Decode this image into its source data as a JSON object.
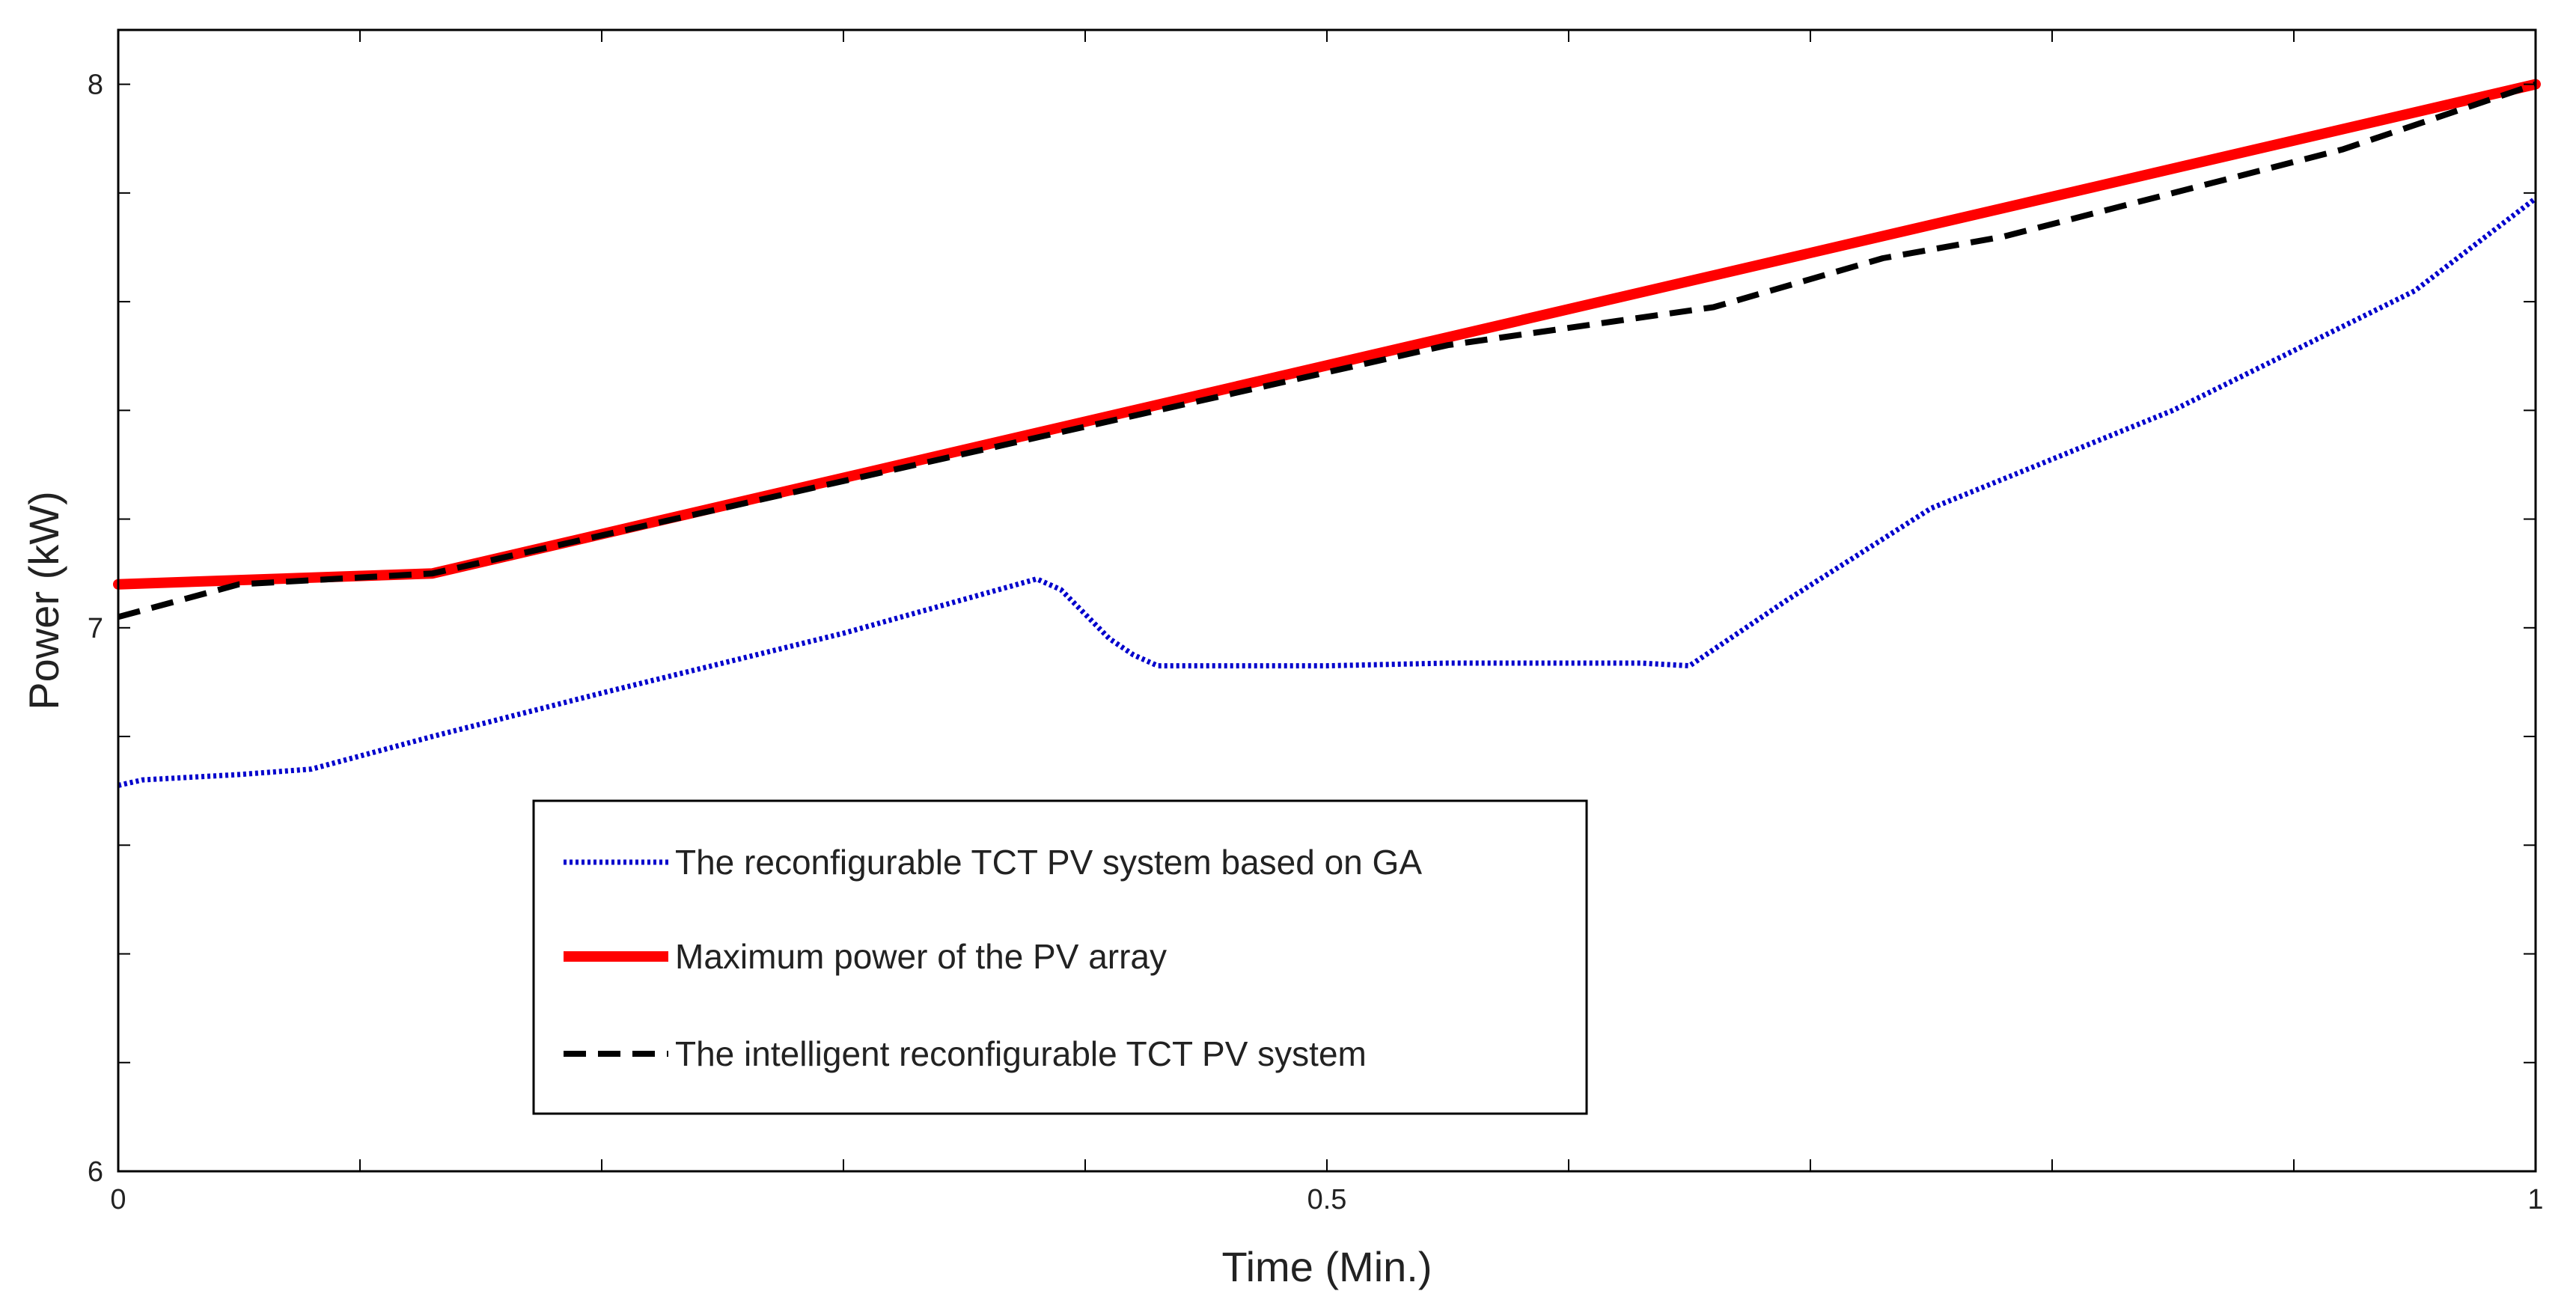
{
  "chart_data": {
    "type": "line",
    "title": "",
    "xlabel": "Time (Min.)",
    "ylabel": "Power (kW)",
    "xlim": [
      0,
      1
    ],
    "ylim": [
      6,
      8.1
    ],
    "xticks": [
      0,
      0.1,
      0.2,
      0.3,
      0.4,
      0.5,
      0.6,
      0.7,
      0.8,
      0.9,
      1
    ],
    "xtick_labels": [
      "0",
      "",
      "",
      "",
      "",
      "0.5",
      "",
      "",
      "",
      "",
      "1"
    ],
    "yticks": [
      6,
      6.2,
      6.4,
      6.6,
      6.8,
      7,
      7.2,
      7.4,
      7.6,
      7.8,
      8
    ],
    "ytick_labels": [
      "6",
      "",
      "",
      "",
      "",
      "7",
      "",
      "",
      "",
      "",
      "8"
    ],
    "grid": false,
    "legend_position": "lower-center",
    "series": [
      {
        "name": "The reconfigurable TCT PV system based on GA",
        "color": "#0000cc",
        "style": "dotted",
        "x": [
          0,
          0.01,
          0.05,
          0.08,
          0.13,
          0.2,
          0.3,
          0.38,
          0.39,
          0.41,
          0.42,
          0.43,
          0.5,
          0.55,
          0.6,
          0.63,
          0.65,
          0.69,
          0.75,
          0.85,
          0.95,
          1
        ],
        "y": [
          6.71,
          6.72,
          6.73,
          6.74,
          6.8,
          6.88,
          6.99,
          7.09,
          7.07,
          6.98,
          6.95,
          6.93,
          6.93,
          6.935,
          6.935,
          6.935,
          6.93,
          7.05,
          7.22,
          7.4,
          7.62,
          7.79
        ]
      },
      {
        "name": "Maximum power of the PV array",
        "color": "#ff0000",
        "style": "solid",
        "x": [
          0,
          0.13,
          1
        ],
        "y": [
          7.08,
          7.1,
          8.0
        ]
      },
      {
        "name": "The intelligent reconfigurable TCT PV system",
        "color": "#000000",
        "style": "dashed",
        "x": [
          0,
          0.05,
          0.13,
          0.5,
          0.55,
          0.66,
          0.73,
          0.78,
          0.85,
          0.92,
          1
        ],
        "y": [
          7.02,
          7.08,
          7.1,
          7.47,
          7.52,
          7.59,
          7.68,
          7.72,
          7.8,
          7.88,
          8.0
        ]
      }
    ]
  }
}
